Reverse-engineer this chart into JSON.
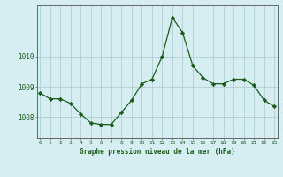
{
  "x": [
    0,
    1,
    2,
    3,
    4,
    5,
    6,
    7,
    8,
    9,
    10,
    11,
    12,
    13,
    14,
    15,
    16,
    17,
    18,
    19,
    20,
    21,
    22,
    23
  ],
  "y": [
    1008.8,
    1008.6,
    1008.6,
    1008.45,
    1008.1,
    1007.8,
    1007.75,
    1007.75,
    1008.15,
    1008.55,
    1009.1,
    1009.25,
    1010.0,
    1011.3,
    1010.8,
    1009.7,
    1009.3,
    1009.1,
    1009.1,
    1009.25,
    1009.25,
    1009.05,
    1008.55,
    1008.35
  ],
  "line_color": "#1a5c1a",
  "marker_color": "#1a5c1a",
  "bg_color": "#d6eef2",
  "grid_color": "#b0d0d4",
  "axis_color": "#666666",
  "title": "Graphe pression niveau de la mer (hPa)",
  "xlabel_ticks": [
    "0",
    "1",
    "2",
    "3",
    "4",
    "5",
    "6",
    "7",
    "8",
    "9",
    "10",
    "11",
    "12",
    "13",
    "14",
    "15",
    "16",
    "17",
    "18",
    "19",
    "20",
    "21",
    "22",
    "23"
  ],
  "yticks": [
    1008,
    1009,
    1010
  ],
  "ylim": [
    1007.3,
    1011.7
  ],
  "xlim": [
    -0.3,
    23.3
  ]
}
